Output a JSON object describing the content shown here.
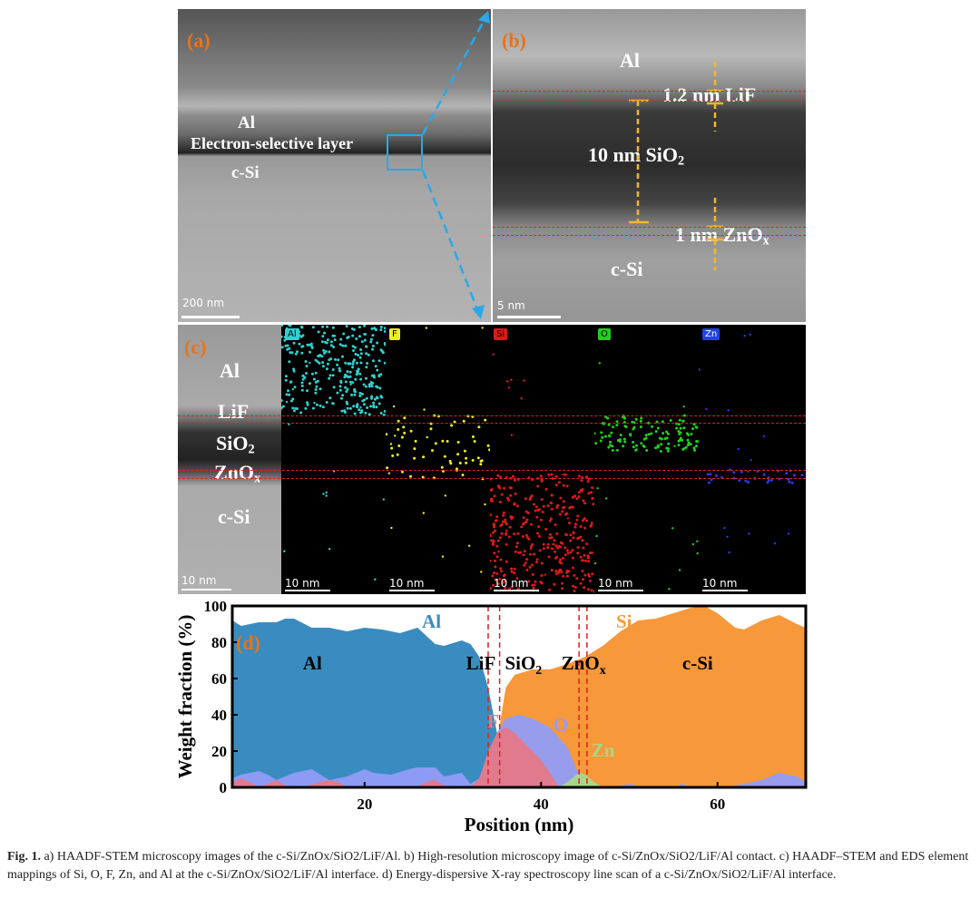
{
  "panel_a": {
    "label": "(a)",
    "al": "Al",
    "esl": "Electron-selective layer",
    "csi": "c-Si",
    "scale": "200 nm"
  },
  "panel_b": {
    "label": "(b)",
    "al": "Al",
    "lif": "1.2 nm LiF",
    "sio2_pre": "10 nm SiO",
    "sio2_sub": "2",
    "zno_pre": "1 nm ZnO",
    "zno_sub": "x",
    "csi": "c-Si",
    "scale": "5 nm"
  },
  "panel_c": {
    "label": "(c)",
    "al": "Al",
    "lif": "LiF",
    "sio2": "SiO",
    "sio2_sub": "2",
    "zno": "ZnO",
    "zno_sub": "x",
    "csi": "c-Si",
    "scale": "10 nm",
    "maps": [
      {
        "el": "Al",
        "color": "#30d0d0"
      },
      {
        "el": "F",
        "color": "#f0f020"
      },
      {
        "el": "Si",
        "color": "#e01818"
      },
      {
        "el": "O",
        "color": "#20d020"
      },
      {
        "el": "Zn",
        "color": "#2040f0"
      }
    ]
  },
  "chart_data": {
    "type": "area",
    "panel_label": "(d)",
    "xlabel": "Position (nm)",
    "ylabel": "Weight fraction (%)",
    "xlim": [
      5,
      70
    ],
    "ylim": [
      0,
      100
    ],
    "xticks": [
      20,
      40,
      60
    ],
    "yticks": [
      0,
      20,
      40,
      60,
      80,
      100
    ],
    "series": [
      {
        "name": "Si",
        "color": "#f7983a",
        "x": [
          5,
          8,
          10,
          12,
          14,
          16,
          18,
          20,
          25,
          28,
          29,
          30,
          31,
          32,
          33,
          34,
          35,
          36,
          37,
          39,
          41,
          43,
          45,
          47,
          49,
          51,
          53,
          55,
          57,
          58.5,
          60,
          62,
          63,
          65,
          67,
          69,
          70
        ],
        "values": [
          0,
          3,
          5,
          10,
          3,
          4,
          7,
          0,
          0,
          3,
          10,
          17,
          8,
          0,
          0,
          0,
          25,
          55,
          62,
          65,
          65,
          68,
          72,
          78,
          86,
          92,
          93,
          96,
          99,
          100,
          96,
          88,
          87,
          92,
          95,
          90,
          88
        ]
      },
      {
        "name": "Al",
        "color": "#3a8cc0",
        "x": [
          5,
          6,
          8,
          10,
          11,
          12,
          14,
          16,
          18,
          20,
          22,
          24,
          26,
          28,
          29,
          31,
          32,
          33,
          34,
          35,
          36,
          37
        ],
        "values": [
          92,
          89,
          91,
          91,
          93,
          93,
          88,
          88,
          86,
          88,
          87,
          85,
          88,
          79,
          78,
          81,
          79,
          72,
          55,
          30,
          5,
          0
        ]
      },
      {
        "name": "O",
        "color": "#919cf7",
        "x": [
          5,
          6,
          8,
          9,
          10,
          12,
          14,
          15,
          16,
          18,
          20,
          21,
          23,
          25,
          26,
          28,
          29,
          31,
          32,
          33,
          34,
          35,
          36,
          37.5,
          39,
          41,
          43,
          44,
          45,
          46,
          48,
          50,
          51,
          52,
          55,
          56,
          57,
          60,
          62,
          65,
          67,
          69,
          70
        ],
        "values": [
          5,
          7,
          9,
          7,
          4,
          8,
          10,
          7,
          4,
          6,
          10,
          8,
          7,
          10,
          11,
          11,
          6,
          8,
          2,
          5,
          18,
          30,
          38,
          40,
          38,
          33,
          22,
          10,
          4,
          0,
          0,
          2,
          1,
          0,
          0,
          2,
          0,
          0,
          1,
          4,
          8,
          6,
          3
        ]
      },
      {
        "name": "F",
        "color": "#e57888",
        "x": [
          5,
          6,
          7,
          8,
          9,
          10,
          11,
          13,
          15,
          16,
          17,
          18,
          19,
          26,
          27,
          28,
          29,
          32,
          33,
          34,
          35,
          36,
          37,
          38,
          40,
          41,
          42
        ],
        "values": [
          3,
          5,
          3,
          0,
          2,
          4,
          1,
          0,
          3,
          4,
          3,
          0,
          0,
          0,
          3,
          4,
          1,
          0,
          5,
          20,
          30,
          33,
          30,
          25,
          15,
          8,
          0
        ]
      },
      {
        "name": "Zn",
        "color": "#a8d88a",
        "x": [
          42,
          43,
          44,
          44.5,
          45,
          46,
          47
        ],
        "values": [
          0,
          3,
          7,
          8,
          7,
          3,
          0
        ]
      }
    ],
    "annotations": {
      "al_series": "Al",
      "si_series": "Si",
      "f": "F",
      "o": "O",
      "zn": "Zn",
      "al_region": "Al",
      "lif": "LiF",
      "sio2": "SiO",
      "sio2_sub": "2",
      "zno": "ZnO",
      "zno_sub": "x",
      "csi": "c-Si"
    }
  },
  "caption": {
    "fig": "Fig. 1.",
    "text": " a) HAADF-STEM microscopy images of the c-Si/ZnOx/SiO2/LiF/Al. b) High-resolution microscopy image of c-Si/ZnOx/SiO2/LiF/Al contact. c) HAADF–STEM and EDS element mappings of Si, O, F, Zn, and Al at the c-Si/ZnOx/SiO2/LiF/Al interface. d) Energy-dispersive X-ray spectroscopy line scan of a c-Si/ZnOx/SiO2/LiF/Al interface."
  }
}
